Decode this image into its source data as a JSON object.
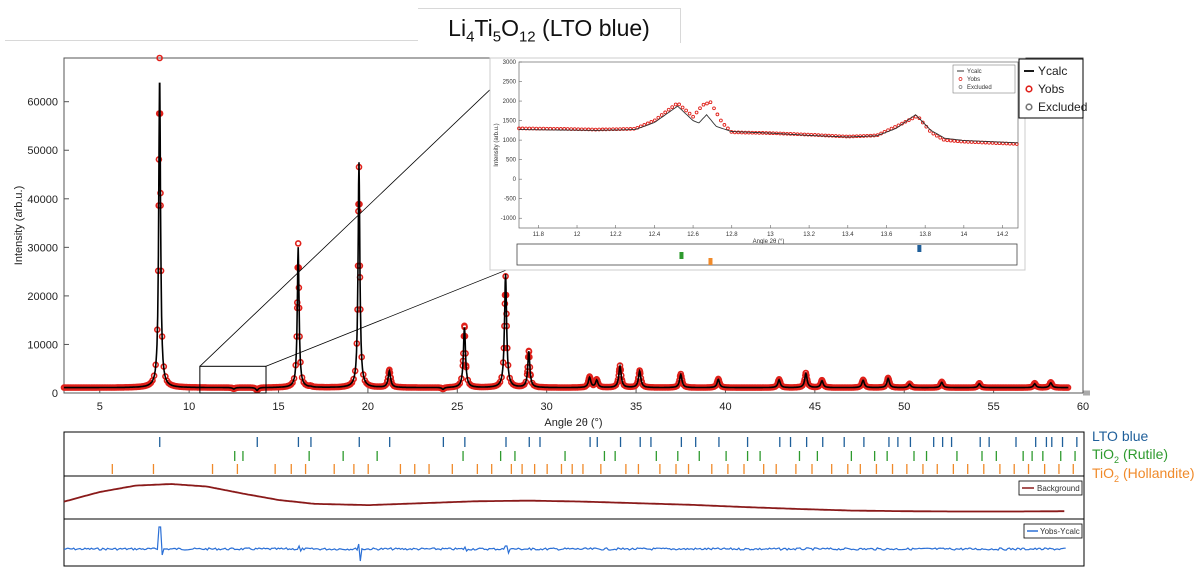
{
  "title": {
    "formula": [
      "Li",
      "4",
      "Ti",
      "5",
      "O",
      "12"
    ],
    "suffix": " (LTO blue)"
  },
  "colors": {
    "ycalc": "#000000",
    "yobs": "#e0201a",
    "lto": "#1f5f9a",
    "rutile": "#2e9a2e",
    "hollandite": "#f08a2a",
    "background": "#8a1a1a",
    "diff": "#2a6fd6"
  },
  "chart_data": [
    {
      "type": "line",
      "name": "main",
      "xlabel": "Angle 2θ (°)",
      "ylabel": "Intensity (arb.u.)",
      "xlim": [
        3,
        60
      ],
      "ylim": [
        0,
        69000
      ],
      "xticks": [
        5,
        10,
        15,
        20,
        25,
        30,
        35,
        40,
        45,
        50,
        55,
        60
      ],
      "yticks": [
        0,
        10000,
        20000,
        30000,
        40000,
        50000,
        60000
      ],
      "ytick_labels": [
        "0",
        "10000",
        "20000",
        "30000",
        "40000",
        "50000",
        "60000"
      ],
      "legend": [
        "Ycalc",
        "Yobs",
        "Excluded"
      ],
      "legend_position": "top-right",
      "baseline": 1100,
      "peaks": [
        {
          "x": 8.35,
          "y": 65500,
          "w": 0.06,
          "obs": 69000
        },
        {
          "x": 16.1,
          "y": 30000,
          "w": 0.06,
          "obs": 30800
        },
        {
          "x": 19.5,
          "y": 47500,
          "w": 0.06,
          "obs": 46500
        },
        {
          "x": 21.2,
          "y": 4500,
          "w": 0.08,
          "obs": 4700
        },
        {
          "x": 25.4,
          "y": 13500,
          "w": 0.07,
          "obs": 13800
        },
        {
          "x": 27.7,
          "y": 24500,
          "w": 0.07,
          "obs": 24000
        },
        {
          "x": 29.0,
          "y": 8500,
          "w": 0.07,
          "obs": 8600
        },
        {
          "x": 32.4,
          "y": 3200,
          "w": 0.08,
          "obs": 3300
        },
        {
          "x": 32.8,
          "y": 2600,
          "w": 0.08,
          "obs": 2700
        },
        {
          "x": 34.1,
          "y": 5500,
          "w": 0.08,
          "obs": 5600
        },
        {
          "x": 35.2,
          "y": 4500,
          "w": 0.08,
          "obs": 4600
        },
        {
          "x": 37.5,
          "y": 3800,
          "w": 0.08,
          "obs": 3900
        },
        {
          "x": 39.6,
          "y": 2800,
          "w": 0.08,
          "obs": 2900
        },
        {
          "x": 43.0,
          "y": 2700,
          "w": 0.08,
          "obs": 2800
        },
        {
          "x": 44.5,
          "y": 4000,
          "w": 0.08,
          "obs": 4100
        },
        {
          "x": 45.4,
          "y": 2500,
          "w": 0.08,
          "obs": 2600
        },
        {
          "x": 47.7,
          "y": 2600,
          "w": 0.08,
          "obs": 2700
        },
        {
          "x": 49.1,
          "y": 3000,
          "w": 0.08,
          "obs": 3100
        },
        {
          "x": 50.3,
          "y": 1800,
          "w": 0.08,
          "obs": 1900
        },
        {
          "x": 52.1,
          "y": 2200,
          "w": 0.08,
          "obs": 2300
        },
        {
          "x": 54.2,
          "y": 1900,
          "w": 0.08,
          "obs": 2000
        },
        {
          "x": 57.3,
          "y": 1900,
          "w": 0.08,
          "obs": 2000
        },
        {
          "x": 58.2,
          "y": 2100,
          "w": 0.08,
          "obs": 2200
        },
        {
          "x": 12.5,
          "y": 800,
          "w": 0.08,
          "obs": 850
        },
        {
          "x": 13.8,
          "y": 500,
          "w": 0.08,
          "obs": 550
        },
        {
          "x": 16.8,
          "y": 1200,
          "w": 0.08,
          "obs": 1300
        },
        {
          "x": 24.2,
          "y": 700,
          "w": 0.08,
          "obs": 750
        }
      ],
      "zoom_box": {
        "x": [
          10.6,
          14.3
        ],
        "y": [
          0,
          5500
        ]
      }
    },
    {
      "type": "line",
      "name": "inset",
      "xlabel": "Angle 2θ (°)",
      "ylabel": "Intensity (arb.u.)",
      "xlim": [
        11.7,
        14.28
      ],
      "ylim": [
        -1250,
        3000
      ],
      "xticks": [
        11.8,
        12,
        12.2,
        12.4,
        12.6,
        12.8,
        13,
        13.2,
        13.4,
        13.6,
        13.8,
        14,
        14.2
      ],
      "yticks": [
        -1000,
        -500,
        0,
        500,
        1000,
        1500,
        2000,
        2500,
        3000
      ],
      "legend": [
        "Ycalc",
        "Yobs",
        "Excluded"
      ],
      "calc_points": [
        [
          11.7,
          1270
        ],
        [
          11.9,
          1260
        ],
        [
          12.1,
          1250
        ],
        [
          12.3,
          1270
        ],
        [
          12.4,
          1450
        ],
        [
          12.52,
          1870
        ],
        [
          12.6,
          1500
        ],
        [
          12.63,
          1440
        ],
        [
          12.67,
          1650
        ],
        [
          12.72,
          1350
        ],
        [
          12.8,
          1220
        ],
        [
          13.0,
          1180
        ],
        [
          13.2,
          1120
        ],
        [
          13.4,
          1080
        ],
        [
          13.55,
          1110
        ],
        [
          13.65,
          1300
        ],
        [
          13.75,
          1650
        ],
        [
          13.83,
          1250
        ],
        [
          13.9,
          1050
        ],
        [
          14.0,
          990
        ],
        [
          14.28,
          930
        ]
      ],
      "obs_points": [
        [
          11.7,
          1300
        ],
        [
          11.9,
          1290
        ],
        [
          12.1,
          1270
        ],
        [
          12.3,
          1290
        ],
        [
          12.4,
          1500
        ],
        [
          12.52,
          1950
        ],
        [
          12.6,
          1600
        ],
        [
          12.65,
          1900
        ],
        [
          12.69,
          1970
        ],
        [
          12.75,
          1450
        ],
        [
          12.8,
          1200
        ],
        [
          13.0,
          1180
        ],
        [
          13.2,
          1140
        ],
        [
          13.4,
          1090
        ],
        [
          13.55,
          1120
        ],
        [
          13.65,
          1350
        ],
        [
          13.76,
          1620
        ],
        [
          13.83,
          1200
        ],
        [
          13.9,
          1000
        ],
        [
          14.0,
          960
        ],
        [
          14.28,
          900
        ]
      ],
      "markers": [
        {
          "x": 12.54,
          "phase": "rutile"
        },
        {
          "x": 12.69,
          "phase": "hollandite"
        },
        {
          "x": 13.77,
          "phase": "lto"
        }
      ]
    },
    {
      "type": "scatter",
      "name": "reflections",
      "xlim": [
        3,
        60
      ],
      "series": [
        {
          "name": "LTO blue",
          "values": [
            8.35,
            13.8,
            16.1,
            16.8,
            19.5,
            21.2,
            24.2,
            25.4,
            27.7,
            29.0,
            29.6,
            32.4,
            32.8,
            34.1,
            35.2,
            35.8,
            37.5,
            38.3,
            39.6,
            41.2,
            43.0,
            43.6,
            44.5,
            45.4,
            46.6,
            47.7,
            49.1,
            49.6,
            50.3,
            51.6,
            52.1,
            52.6,
            54.2,
            54.7,
            56.2,
            57.3,
            57.9,
            58.2,
            58.8,
            59.6
          ]
        },
        {
          "name": "TiO2 (Rutile)",
          "values": [
            12.54,
            13.0,
            16.7,
            18.6,
            20.5,
            25.3,
            27.4,
            28.2,
            31.0,
            33.2,
            33.8,
            36.1,
            37.3,
            38.5,
            40.0,
            41.2,
            41.9,
            44.1,
            45.1,
            47.0,
            48.3,
            49.0,
            50.5,
            51.2,
            52.9,
            54.3,
            55.1,
            56.6,
            57.1,
            57.7,
            58.7,
            59.5
          ]
        },
        {
          "name": "TiO2 (Hollandite)",
          "values": [
            5.7,
            8.0,
            11.3,
            12.69,
            14.8,
            15.7,
            16.5,
            18.1,
            19.2,
            20.0,
            21.8,
            22.6,
            23.4,
            24.7,
            26.1,
            26.9,
            28.0,
            28.6,
            29.3,
            30.0,
            30.8,
            31.4,
            32.0,
            33.0,
            34.4,
            35.1,
            36.3,
            37.2,
            37.9,
            39.2,
            40.1,
            41.0,
            42.1,
            42.8,
            43.9,
            44.8,
            45.9,
            46.8,
            47.5,
            48.4,
            49.3,
            50.1,
            51.0,
            51.8,
            52.7,
            53.5,
            54.4,
            55.3,
            56.1,
            56.9,
            57.8,
            58.6,
            59.4
          ]
        }
      ]
    },
    {
      "type": "line",
      "name": "background",
      "legend": [
        "Background"
      ],
      "xlim": [
        3,
        59
      ],
      "points": [
        [
          3,
          0.55
        ],
        [
          5,
          0.25
        ],
        [
          7,
          0.05
        ],
        [
          9,
          0.0
        ],
        [
          11,
          0.08
        ],
        [
          13,
          0.3
        ],
        [
          15,
          0.5
        ],
        [
          17,
          0.62
        ],
        [
          20,
          0.66
        ],
        [
          23,
          0.6
        ],
        [
          26,
          0.54
        ],
        [
          29,
          0.52
        ],
        [
          32,
          0.55
        ],
        [
          35,
          0.6
        ],
        [
          38,
          0.65
        ],
        [
          41,
          0.72
        ],
        [
          44,
          0.78
        ],
        [
          47,
          0.83
        ],
        [
          50,
          0.85
        ],
        [
          53,
          0.86
        ],
        [
          56,
          0.86
        ],
        [
          59,
          0.85
        ]
      ]
    },
    {
      "type": "line",
      "name": "difference",
      "legend": [
        "Yobs-Ycalc"
      ],
      "xlim": [
        3,
        59
      ],
      "spikes": [
        {
          "x": 8.35,
          "up": 22,
          "down": 6
        },
        {
          "x": 16.1,
          "up": 3,
          "down": 2
        },
        {
          "x": 19.5,
          "up": 5,
          "down": 12
        },
        {
          "x": 25.4,
          "up": 2,
          "down": 2
        },
        {
          "x": 27.7,
          "up": 3,
          "down": 4
        },
        {
          "x": 29.0,
          "up": 1,
          "down": 1
        }
      ]
    }
  ],
  "phase_labels": [
    {
      "text": "LTO blue",
      "base": "",
      "sub": "",
      "suffix": ""
    },
    {
      "text": "",
      "base": "TiO",
      "sub": "2",
      "suffix": " (Rutile)"
    },
    {
      "text": "",
      "base": "TiO",
      "sub": "2",
      "suffix": " (Hollandite)"
    }
  ]
}
